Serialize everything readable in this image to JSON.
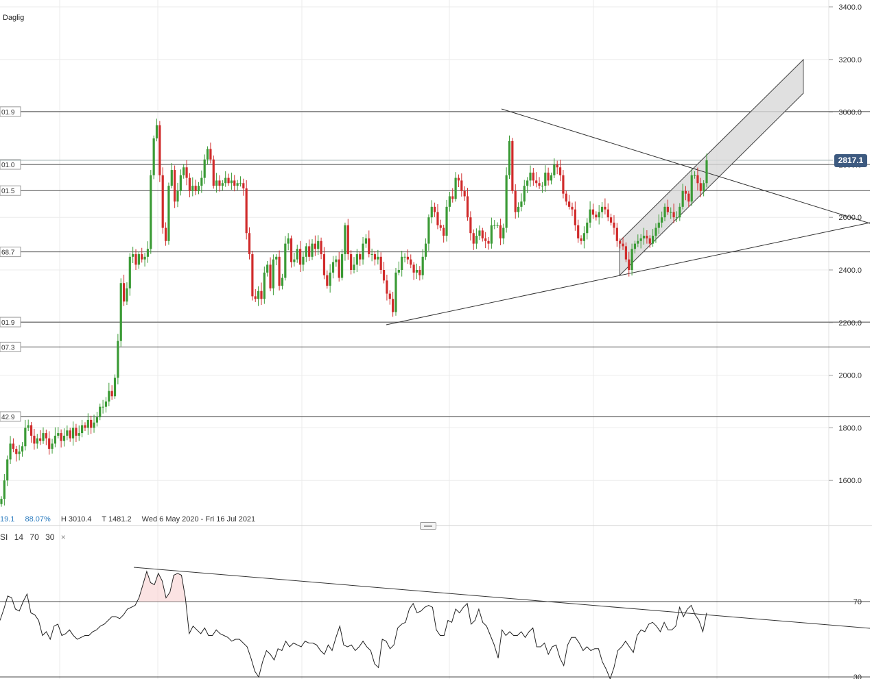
{
  "header": {
    "timeframe": "Daglig"
  },
  "info_bar": {
    "value_fragment": "19.1",
    "percent": "88.07%",
    "high": "H 3010.4",
    "low": "T 1481.2",
    "date_range": "Wed 6 May 2020 - Fri 16 Jul 2021"
  },
  "rsi_header": {
    "name": "SI",
    "period": "14",
    "upper": "70",
    "lower": "30",
    "close_label": "×"
  },
  "current_price": "2817.1",
  "colors": {
    "up": "#3a9a35",
    "down": "#d02b2b",
    "grid": "#ebebeb",
    "line": "#333333",
    "channel": "#d8d8d8",
    "badge": "#3d5a80"
  },
  "chart_data": [
    {
      "type": "candlestick",
      "y_axis_ticks": [
        "3400.0",
        "3200.0",
        "3000.0",
        "2800.0",
        "2600.0",
        "2400.0",
        "2200.0",
        "2000.0",
        "1800.0",
        "1600.0"
      ],
      "ylim": [
        1420,
        3400
      ],
      "date_range": [
        "2020-05-06",
        "2021-07-16"
      ],
      "high": 3010.4,
      "low": 1481.2,
      "horizontal_levels": [
        {
          "value": 3001.9,
          "label": "01.9"
        },
        {
          "value": 2801.0,
          "label": "01.0"
        },
        {
          "value": 2701.5,
          "label": "01.5"
        },
        {
          "value": 2468.7,
          "label": "68.7"
        },
        {
          "value": 2201.9,
          "label": "01.9"
        },
        {
          "value": 2107.3,
          "label": "07.3"
        },
        {
          "value": 1842.9,
          "label": "42.9"
        }
      ],
      "last_price": 2817.1,
      "close_series": [
        1530,
        1600,
        1680,
        1740,
        1720,
        1700,
        1710,
        1730,
        1800,
        1810,
        1770,
        1740,
        1760,
        1750,
        1780,
        1760,
        1720,
        1740,
        1770,
        1780,
        1750,
        1770,
        1790,
        1760,
        1800,
        1770,
        1780,
        1810,
        1800,
        1830,
        1800,
        1820,
        1840,
        1880,
        1880,
        1900,
        1940,
        1920,
        1990,
        2130,
        2350,
        2280,
        2330,
        2450,
        2460,
        2420,
        2460,
        2440,
        2450,
        2480,
        2760,
        2900,
        2950,
        2760,
        2560,
        2510,
        2720,
        2780,
        2660,
        2700,
        2760,
        2790,
        2750,
        2700,
        2720,
        2700,
        2720,
        2750,
        2820,
        2860,
        2820,
        2720,
        2740,
        2720,
        2730,
        2750,
        2730,
        2740,
        2720,
        2730,
        2730,
        2710,
        2540,
        2460,
        2300,
        2290,
        2320,
        2290,
        2390,
        2420,
        2330,
        2440,
        2450,
        2340,
        2370,
        2500,
        2520,
        2430,
        2440,
        2480,
        2420,
        2450,
        2490,
        2450,
        2500,
        2480,
        2510,
        2460,
        2380,
        2340,
        2390,
        2430,
        2440,
        2370,
        2460,
        2570,
        2460,
        2400,
        2420,
        2460,
        2440,
        2500,
        2520,
        2460,
        2460,
        2440,
        2450,
        2400,
        2360,
        2310,
        2290,
        2240,
        2390,
        2400,
        2450,
        2450,
        2440,
        2420,
        2390,
        2400,
        2380,
        2450,
        2500,
        2600,
        2640,
        2620,
        2570,
        2560,
        2530,
        2640,
        2680,
        2670,
        2750,
        2740,
        2700,
        2680,
        2600,
        2540,
        2500,
        2530,
        2550,
        2520,
        2510,
        2500,
        2570,
        2570,
        2570,
        2520,
        2560,
        2760,
        2890,
        2700,
        2620,
        2640,
        2660,
        2720,
        2740,
        2770,
        2740,
        2730,
        2720,
        2720,
        2770,
        2740,
        2760,
        2800,
        2790,
        2760,
        2690,
        2660,
        2640,
        2630,
        2570,
        2520,
        2510,
        2540,
        2580,
        2630,
        2610,
        2600,
        2620,
        2640,
        2630,
        2600,
        2580,
        2560,
        2510,
        2500,
        2490,
        2440,
        2400,
        2480,
        2500,
        2510,
        2520,
        2530,
        2520,
        2500,
        2530,
        2560,
        2580,
        2600,
        2640,
        2620,
        2620,
        2600,
        2600,
        2640,
        2700,
        2690,
        2660,
        2760,
        2760,
        2730,
        2700,
        2730,
        2817
      ]
    },
    {
      "type": "line",
      "name": "RSI",
      "params": [
        14,
        70,
        30
      ],
      "y_axis_ticks": [
        "70",
        "30"
      ],
      "levels": [
        70,
        30
      ],
      "values": [
        60,
        66,
        73,
        72,
        66,
        65,
        70,
        74,
        64,
        63,
        60,
        52,
        54,
        50,
        57,
        58,
        52,
        53,
        55,
        52,
        50,
        51,
        52,
        52,
        54,
        55,
        57,
        58,
        60,
        62,
        62,
        61,
        63,
        66,
        67,
        68,
        72,
        79,
        86,
        80,
        79,
        85,
        81,
        72,
        75,
        84,
        85,
        84,
        72,
        53,
        57,
        55,
        53,
        56,
        52,
        52,
        55,
        53,
        52,
        51,
        49,
        50,
        50,
        48,
        46,
        40,
        33,
        30,
        38,
        44,
        42,
        39,
        45,
        44,
        49,
        46,
        48,
        47,
        46,
        49,
        48,
        48,
        47,
        44,
        42,
        47,
        44,
        51,
        57,
        47,
        46,
        47,
        44,
        46,
        49,
        46,
        44,
        37,
        35,
        50,
        49,
        45,
        47,
        56,
        58,
        59,
        66,
        69,
        64,
        65,
        67,
        68,
        67,
        55,
        52,
        52,
        60,
        59,
        66,
        64,
        67,
        69,
        58,
        60,
        66,
        59,
        57,
        52,
        47,
        40,
        55,
        52,
        54,
        52,
        52,
        54,
        51,
        54,
        56,
        46,
        46,
        48,
        42,
        46,
        47,
        40,
        36,
        47,
        51,
        51,
        48,
        44,
        46,
        44,
        45,
        45,
        38,
        34,
        29,
        35,
        44,
        46,
        49,
        46,
        43,
        52,
        55,
        54,
        58,
        59,
        57,
        54,
        59,
        55,
        55,
        57,
        67,
        62,
        66,
        68,
        63,
        60,
        54,
        64
      ]
    }
  ]
}
